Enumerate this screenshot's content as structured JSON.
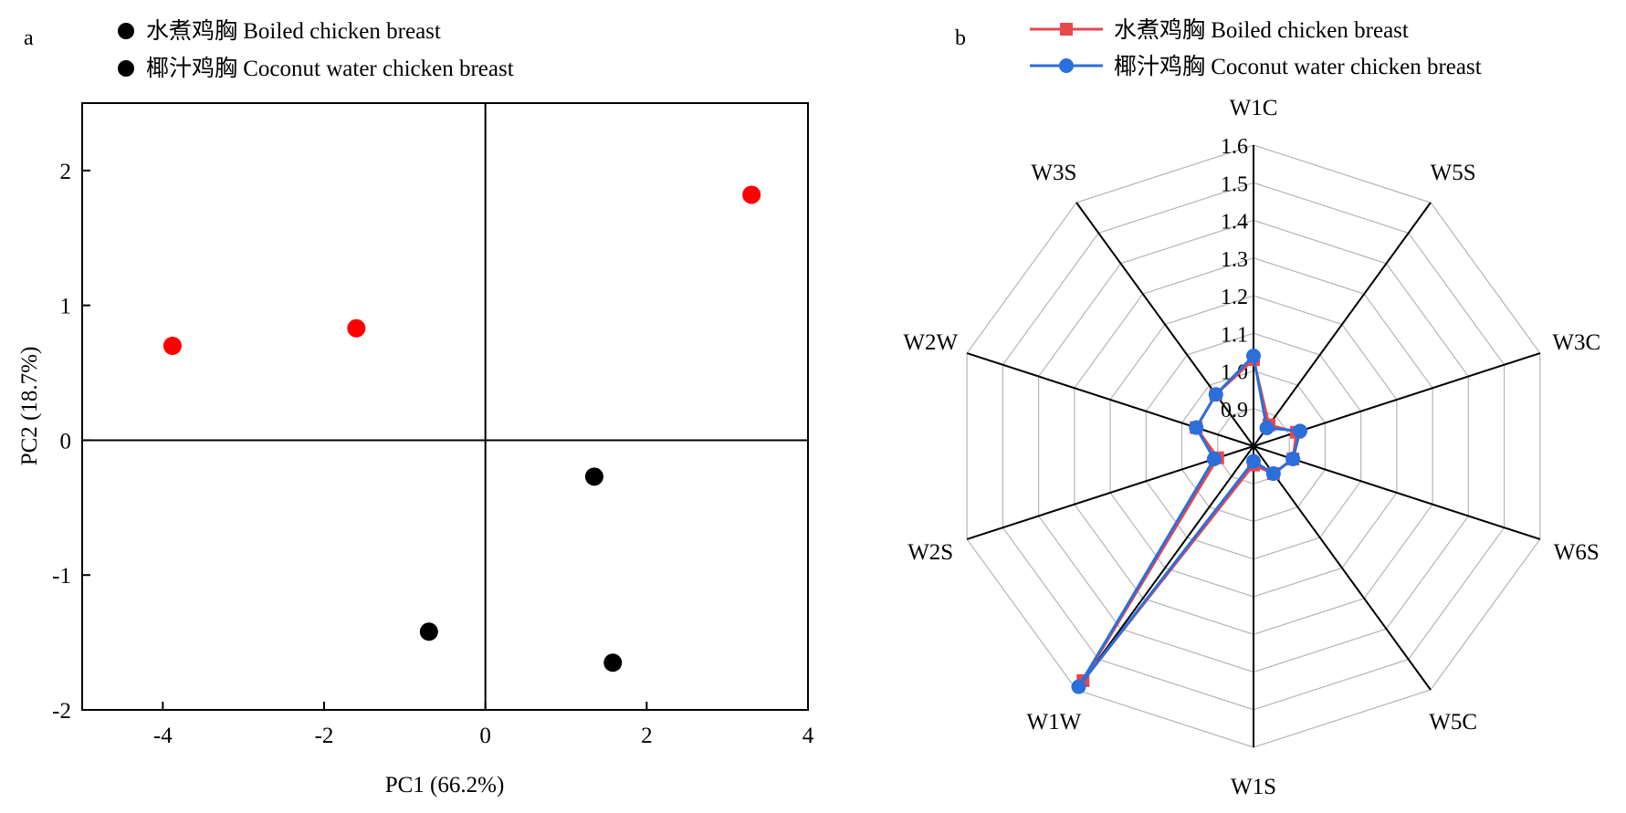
{
  "chart_data": [
    {
      "type": "scatter",
      "panel_label": "a",
      "xlabel": "PC1 (66.2%)",
      "ylabel": "PC2 (18.7%)",
      "xlim": [
        -5,
        4
      ],
      "ylim": [
        -2,
        2.5
      ],
      "xticks": [
        -4,
        -2,
        0,
        2,
        4
      ],
      "yticks": [
        -2,
        -1,
        0,
        1,
        2
      ],
      "xtick_labels": [
        "-4",
        "-2",
        "0",
        "2",
        "4"
      ],
      "ytick_labels": [
        "-2",
        "-1",
        "0",
        "1",
        "2"
      ],
      "grid": false,
      "legend_position": "top-left, above plot",
      "series": [
        {
          "name": "水煮鸡胸 Boiled chicken breast",
          "color": "#000000",
          "points": [
            {
              "x": 1.35,
              "y": -0.27
            },
            {
              "x": -0.7,
              "y": -1.42
            },
            {
              "x": 1.58,
              "y": -1.65
            }
          ]
        },
        {
          "name": "椰汁鸡胸 Coconut water chicken breast",
          "color": "#ff0000",
          "points": [
            {
              "x": -3.88,
              "y": 0.7
            },
            {
              "x": -1.6,
              "y": 0.83
            },
            {
              "x": 3.3,
              "y": 1.82
            }
          ]
        }
      ]
    },
    {
      "type": "radar",
      "panel_label": "b",
      "axes": [
        "W1C",
        "W5S",
        "W3C",
        "W6S",
        "W5C",
        "W1S",
        "W1W",
        "W2S",
        "W2W",
        "W3S"
      ],
      "rlim": [
        0.8,
        1.6
      ],
      "rticks": [
        0.9,
        1.0,
        1.1,
        1.2,
        1.3,
        1.4,
        1.5,
        1.6
      ],
      "rtick_labels": [
        "0.9",
        "1.0",
        "1.1",
        "1.2",
        "1.3",
        "1.4",
        "1.5",
        "1.6"
      ],
      "legend_position": "top, above plot",
      "series": [
        {
          "name": "水煮鸡胸 Boiled chicken breast",
          "color": "#e8474c",
          "marker": "square",
          "values": [
            1.03,
            0.87,
            0.92,
            0.91,
            0.89,
            0.85,
            1.57,
            0.9,
            0.96,
            0.97
          ]
        },
        {
          "name": "椰汁鸡胸 Coconut water chicken breast",
          "color": "#2a6fdb",
          "marker": "circle",
          "values": [
            1.04,
            0.86,
            0.93,
            0.91,
            0.89,
            0.84,
            1.59,
            0.91,
            0.96,
            0.97
          ]
        }
      ]
    }
  ]
}
